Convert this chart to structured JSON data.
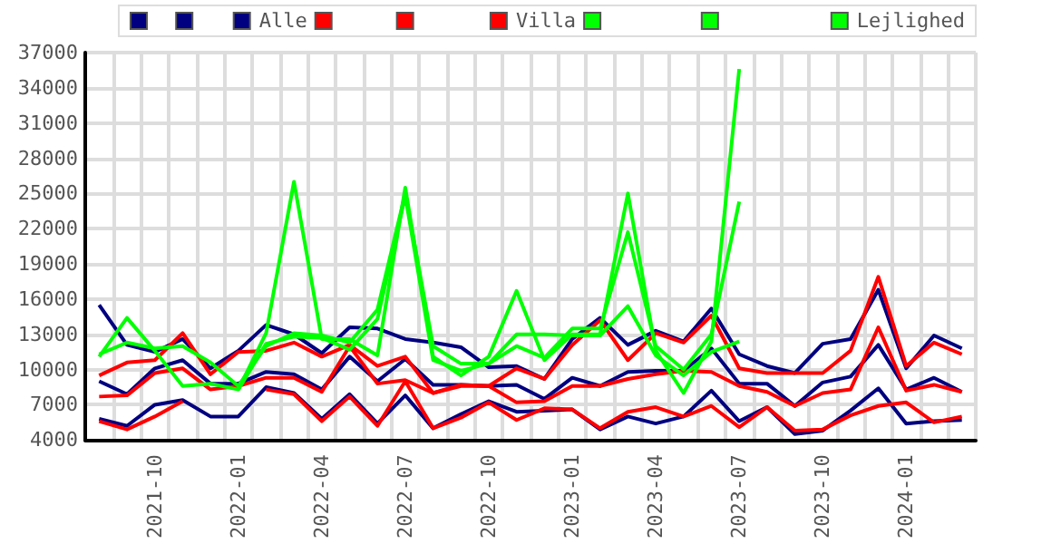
{
  "chart_data": {
    "type": "line",
    "categories": [
      null,
      null,
      "2021-10",
      null,
      null,
      "2022-01",
      null,
      null,
      "2022-04",
      null,
      null,
      "2022-07",
      null,
      null,
      "2022-10",
      null,
      null,
      "2023-01",
      null,
      null,
      "2023-04",
      null,
      null,
      "2023-07",
      null,
      null,
      "2023-10",
      null,
      null,
      "2024-01",
      null,
      null
    ],
    "series": [
      {
        "color": "#000080",
        "values": [
          15500,
          12100,
          11500,
          12600,
          10100,
          11600,
          13800,
          13000,
          11400,
          13600,
          13500,
          12600,
          12300,
          11900,
          10200,
          10300,
          9200,
          12600,
          14400,
          12100,
          13300,
          12400,
          15200,
          11300,
          10300,
          9700,
          12200,
          12600,
          16800,
          10100,
          12900,
          11800
        ]
      },
      {
        "color": "#000080",
        "values": [
          9000,
          7900,
          10100,
          10800,
          8800,
          8800,
          9800,
          9600,
          8300,
          11100,
          9000,
          10900,
          8700,
          8700,
          8600,
          8700,
          7500,
          9300,
          8600,
          9800,
          9900,
          9900,
          11800,
          8800,
          8800,
          6900,
          8900,
          9400,
          12100,
          8300,
          9300,
          8100
        ]
      },
      {
        "name": "Alle",
        "color": "#000080",
        "values": [
          5800,
          5200,
          7000,
          7400,
          6000,
          6000,
          8500,
          8000,
          5800,
          7900,
          5400,
          7800,
          5000,
          6200,
          7300,
          6400,
          6500,
          6600,
          4900,
          6000,
          5400,
          6000,
          8200,
          5600,
          6800,
          4500,
          4800,
          6500,
          8400,
          5400,
          5600,
          5700
        ]
      },
      {
        "color": "#ff0000",
        "values": [
          9500,
          10600,
          10800,
          13100,
          9600,
          11500,
          11600,
          12300,
          11100,
          12100,
          10300,
          11100,
          8000,
          8700,
          8600,
          10100,
          9200,
          12100,
          14200,
          10800,
          13100,
          12300,
          14600,
          10100,
          9700,
          9700,
          9700,
          11600,
          17900,
          10300,
          12300,
          11300
        ]
      },
      {
        "color": "#ff0000",
        "values": [
          7700,
          7800,
          9700,
          10100,
          8300,
          8600,
          9300,
          9300,
          8100,
          12000,
          8800,
          9100,
          8000,
          8600,
          8600,
          7200,
          7300,
          8600,
          8600,
          9200,
          9600,
          9900,
          9800,
          8600,
          8100,
          6900,
          8000,
          8300,
          13600,
          8200,
          8700,
          8100
        ]
      },
      {
        "name": "Villa",
        "color": "#ff0000",
        "values": [
          5600,
          4900,
          6000,
          7300,
          null,
          null,
          8300,
          7900,
          5600,
          7700,
          5200,
          9000,
          5000,
          5900,
          7200,
          5700,
          6700,
          6600,
          5000,
          6400,
          6800,
          6000,
          6900,
          5100,
          6800,
          4800,
          4900,
          6100,
          6900,
          7200,
          5500,
          6000
        ]
      },
      {
        "color": "#00ff00",
        "values": [
          11100,
          14400,
          11600,
          8600,
          8800,
          8300,
          13100,
          26000,
          12600,
          12600,
          11200,
          25500,
          11100,
          9500,
          11100,
          16700,
          10800,
          13000,
          13000,
          25000,
          11600,
          8000,
          12400,
          35600,
          null,
          null,
          null,
          null,
          null,
          null,
          null,
          null
        ]
      },
      {
        "color": "#00ff00",
        "values": [
          11300,
          12300,
          11800,
          12000,
          10600,
          8600,
          12000,
          13100,
          12900,
          12300,
          15100,
          25000,
          12000,
          10500,
          10500,
          12000,
          11000,
          13500,
          13500,
          21700,
          12000,
          10000,
          13000,
          24300,
          null,
          null,
          null,
          null,
          null,
          null,
          null,
          null
        ]
      },
      {
        "name": "Lejlighed",
        "color": "#00ff00",
        "values": [
          null,
          null,
          null,
          null,
          null,
          8300,
          12200,
          12800,
          12700,
          11700,
          14300,
          24800,
          10800,
          9900,
          10500,
          13000,
          13000,
          12900,
          12900,
          15400,
          11200,
          9500,
          11500,
          12400,
          null,
          null,
          null,
          null,
          null,
          null,
          null,
          null
        ]
      }
    ],
    "ylim": [
      4000,
      37000
    ],
    "yticks": [
      4000,
      7000,
      10000,
      13000,
      16000,
      19000,
      22000,
      25000,
      28000,
      31000,
      34000,
      37000
    ],
    "grid": true,
    "legend": "top right"
  }
}
